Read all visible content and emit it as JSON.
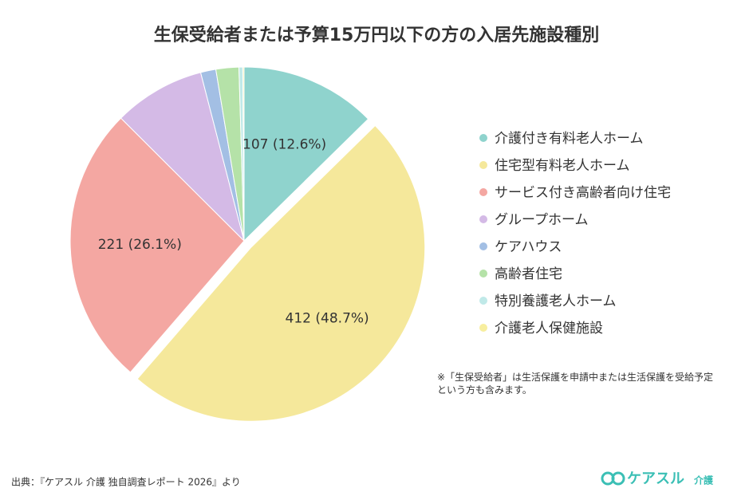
{
  "chart_data": {
    "type": "pie",
    "title": "生保受給者または予算15万円以下の方の入居先施設種別",
    "categories": [
      "介護付き有料老人ホーム",
      "住宅型有料老人ホーム",
      "サービス付き高齢者向け住宅",
      "グループホーム",
      "ケアハウス",
      "高齢者住宅",
      "特別養護老人ホーム",
      "介護老人保健施設"
    ],
    "values": [
      107,
      412,
      221,
      72,
      12,
      18,
      3,
      1
    ],
    "value_labels": [
      "107 (12.6%)",
      "412 (48.7%)",
      "221 (26.1%)",
      null,
      null,
      null,
      null,
      null
    ],
    "colors": [
      "#8fd3cd",
      "#f5e89b",
      "#f4a7a2",
      "#d4bae6",
      "#a3bfe4",
      "#b5e2a8",
      "#c0e9e8",
      "#f7ee9f"
    ],
    "exploded": [
      false,
      true,
      false,
      false,
      false,
      false,
      false,
      false
    ],
    "legend": "right",
    "note": "※「生保受給者」は生活保護を申請中または生活保護を受給予定という方も含みます。"
  },
  "footer": {
    "source": "出典：『ケアスル 介護 独自調査レポート 2026』より",
    "logo": "ケアスル",
    "logo_sub": "介護"
  }
}
